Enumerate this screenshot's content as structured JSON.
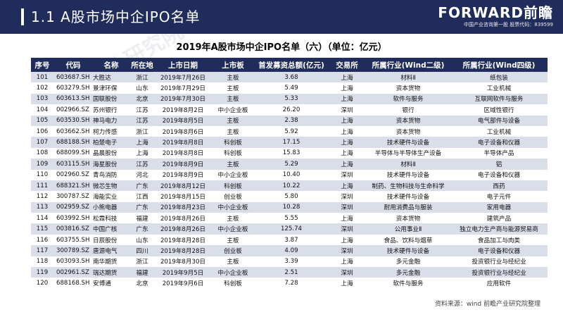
{
  "header": {
    "title": "1.1 A股市场中企IPO名单",
    "logo_main": "FORWARD前瞻",
    "logo_sub": "中国产业咨询第一股 股票代码：839599"
  },
  "table_title": "2019年A股市场中企IPO名单（六）（单位：亿元）",
  "columns": [
    "序号",
    "代码",
    "名称",
    "所在地",
    "上市日期",
    "上市板",
    "首发募资总额(亿元)",
    "交易所",
    "所属行业(Wind二级)",
    "所属行业(Wind四级)"
  ],
  "rows": [
    [
      "101",
      "603687.SH",
      "大胜达",
      "浙江",
      "2019年7月26日",
      "主板",
      "3.68",
      "上海",
      "材料Ⅱ",
      "纸包装"
    ],
    [
      "102",
      "603279.SH",
      "景津环保",
      "山东",
      "2019年7月29日",
      "主板",
      "5.49",
      "上海",
      "资本货物",
      "工业机械"
    ],
    [
      "103",
      "603613.SH",
      "国联股份",
      "北京",
      "2019年7月30日",
      "主板",
      "5.33",
      "上海",
      "软件与服务",
      "互联网软件与服务"
    ],
    [
      "104",
      "002966.SZ",
      "苏州银行",
      "江苏",
      "2019年8月2日",
      "中小企业板",
      "26.20",
      "深圳",
      "银行",
      "区域性银行"
    ],
    [
      "105",
      "603530.SH",
      "神马电力",
      "江苏",
      "2019年8月5日",
      "主板",
      "2.38",
      "上海",
      "资本货物",
      "电气部件与设备"
    ],
    [
      "106",
      "603662.SH",
      "柯力传感",
      "浙江",
      "2019年8月6日",
      "主板",
      "5.92",
      "上海",
      "资本货物",
      "工业机械"
    ],
    [
      "107",
      "688188.SH",
      "柏楚电子",
      "上海",
      "2019年8月8日",
      "科创板",
      "17.15",
      "上海",
      "技术硬件与设备",
      "电子设备和仪器"
    ],
    [
      "108",
      "688099.SH",
      "晶晨股份",
      "上海",
      "2019年8月8日",
      "科创板",
      "15.83",
      "上海",
      "半导体与半导体生产设备",
      "半导体产品"
    ],
    [
      "109",
      "603115.SH",
      "海星股份",
      "江苏",
      "2019年8月9日",
      "主板",
      "5.29",
      "上海",
      "材料Ⅱ",
      "铝"
    ],
    [
      "110",
      "002960.SZ",
      "青鸟消防",
      "河北",
      "2019年8月9日",
      "中小企业板",
      "10.40",
      "深圳",
      "技术硬件与设备",
      "电子设备和仪器"
    ],
    [
      "111",
      "688321.SH",
      "微芯生物",
      "广东",
      "2019年8月12日",
      "科创板",
      "10.22",
      "上海",
      "制药、生物科技与生命科学",
      "西药"
    ],
    [
      "112",
      "300787.SZ",
      "海能实业",
      "江西",
      "2019年8月15日",
      "创业板",
      "5.80",
      "深圳",
      "技术硬件与设备",
      "电子元件"
    ],
    [
      "113",
      "002959.SZ",
      "小熊电器",
      "广东",
      "2019年8月23日",
      "中小企业板",
      "10.28",
      "深圳",
      "耐用消费品与服装",
      "家用电器"
    ],
    [
      "114",
      "603992.SH",
      "松霖科技",
      "福建",
      "2019年8月26日",
      "主板",
      "5.55",
      "上海",
      "资本货物",
      "建筑产品"
    ],
    [
      "115",
      "003816.SZ",
      "中国广核",
      "广东",
      "2019年8月26日",
      "中小企业板",
      "125.74",
      "深圳",
      "公用事业Ⅱ",
      "独立电力生产商与能源贸易商"
    ],
    [
      "116",
      "603755.SH",
      "日辰股份",
      "山东",
      "2019年8月28日",
      "主板",
      "3.87",
      "上海",
      "食品、饮料与烟草",
      "食品加工与肉类"
    ],
    [
      "117",
      "300789.SZ",
      "唐源电气",
      "四川",
      "2019年8月28日",
      "创业板",
      "4.09",
      "深圳",
      "技术硬件与设备",
      "电子设备和仪器"
    ],
    [
      "118",
      "603093.SH",
      "南华期货",
      "浙江",
      "2019年8月30日",
      "主板",
      "3.39",
      "上海",
      "多元金融",
      "投资银行业与经纪业"
    ],
    [
      "119",
      "002961.SZ",
      "瑞达期货",
      "福建",
      "2019年9月5日",
      "中小企业板",
      "2.51",
      "深圳",
      "多元金融",
      "投资银行业与经纪业"
    ],
    [
      "120",
      "688168.SH",
      "安博通",
      "北京",
      "2019年9月6日",
      "科创板",
      "7.28",
      "上海",
      "软件与服务",
      "应用软件"
    ]
  ],
  "source": "资料来源：wind 前瞻产业研究院整理",
  "watermark": "前瞻产业研究院"
}
